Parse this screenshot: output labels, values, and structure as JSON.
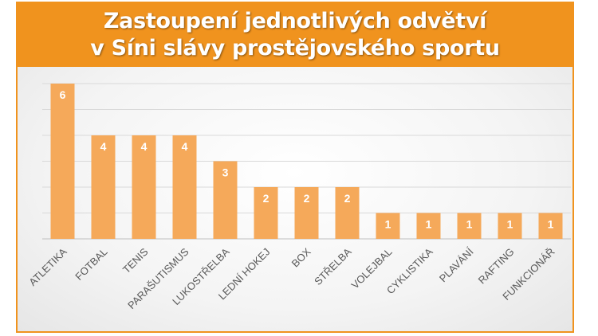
{
  "chart_data": {
    "type": "bar",
    "title": [
      "Zastoupení jednotlivých odvětví",
      "v Síni slávy prostějovského sportu"
    ],
    "categories": [
      "ATLETIKA",
      "FOTBAL",
      "TENIS",
      "PARAŠUTISMUS",
      "LUKOSTŘELBA",
      "LEDNÍ HOKEJ",
      "BOX",
      "STŘELBA",
      "VOLEJBAL",
      "CYKLISTIKA",
      "PLAVÁNÍ",
      "RAFTING",
      "FUNKCIONÁŘ"
    ],
    "values": [
      6,
      4,
      4,
      4,
      3,
      2,
      2,
      2,
      1,
      1,
      1,
      1,
      1
    ],
    "ylim": [
      0,
      6
    ],
    "grid": true,
    "data_labels": true,
    "colors": {
      "bar": "#f5a95a",
      "title_bg": "#f0931e",
      "frame": "#f0931e",
      "label": "#ffffff",
      "tick": "#595959",
      "grid": "#d9d9d9"
    }
  }
}
